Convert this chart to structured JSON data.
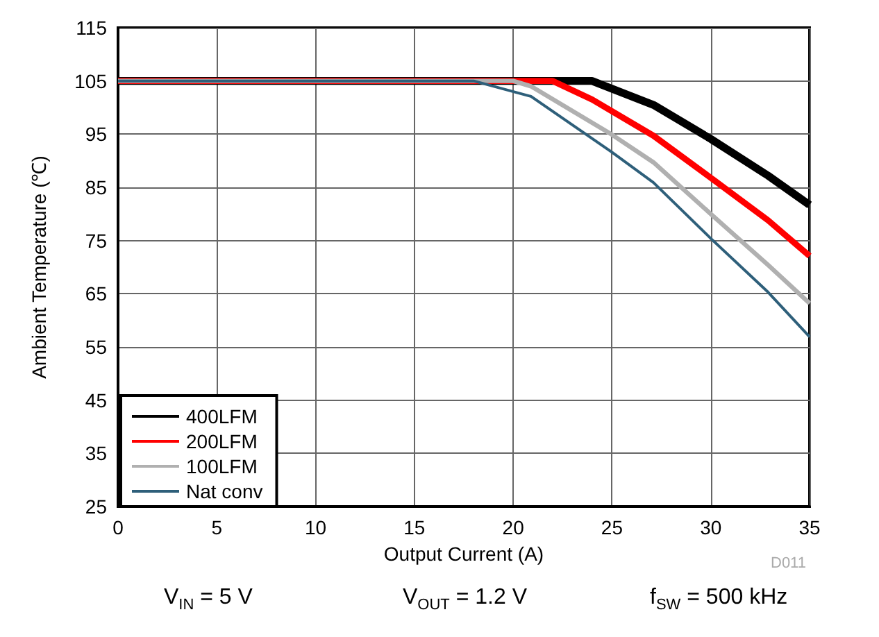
{
  "chart_data": {
    "type": "line",
    "xlabel": "Output Current (A)",
    "ylabel": "Ambient Temperature (℃)",
    "xlim": [
      0,
      35
    ],
    "xticks": [
      0,
      5,
      10,
      15,
      20,
      25,
      30,
      35
    ],
    "ylim": [
      25,
      115
    ],
    "yticks": [
      25,
      35,
      45,
      55,
      65,
      75,
      85,
      95,
      105,
      115
    ],
    "grid": true,
    "legend": "bottom left",
    "marker": "none",
    "line_style": "solid",
    "series": [
      {
        "name": "400LFM",
        "color": "#000000",
        "x": [
          0,
          24,
          27.1,
          30,
          32.9,
          35
        ],
        "values": [
          105,
          105,
          100.5,
          94.1,
          87.2,
          81.7
        ]
      },
      {
        "name": "200LFM",
        "color": "#ff0000",
        "x": [
          0,
          22,
          24,
          27.1,
          30,
          32.9,
          35
        ],
        "values": [
          105,
          105,
          101.5,
          94.7,
          86.8,
          78.8,
          72.1
        ]
      },
      {
        "name": "100LFM",
        "color": "#b0b0b0",
        "x": [
          0,
          20,
          20.9,
          25,
          27.1,
          30,
          32.9,
          35
        ],
        "values": [
          105,
          105,
          104,
          94.9,
          89.7,
          80,
          70.4,
          63.2
        ]
      },
      {
        "name": "Nat conv",
        "color": "#2e5f7a",
        "x": [
          0,
          18,
          20.9,
          25,
          27.1,
          30,
          32.9,
          35
        ],
        "values": [
          105,
          105,
          102.1,
          91.6,
          85.9,
          75.4,
          65.3,
          56.9
        ]
      }
    ],
    "annotations": [
      "D011",
      "V$_{IN}$ = 5 V",
      "V$_{OUT}$ = 1.2 V",
      "f$_{SW}$ = 500 kHz"
    ]
  }
}
